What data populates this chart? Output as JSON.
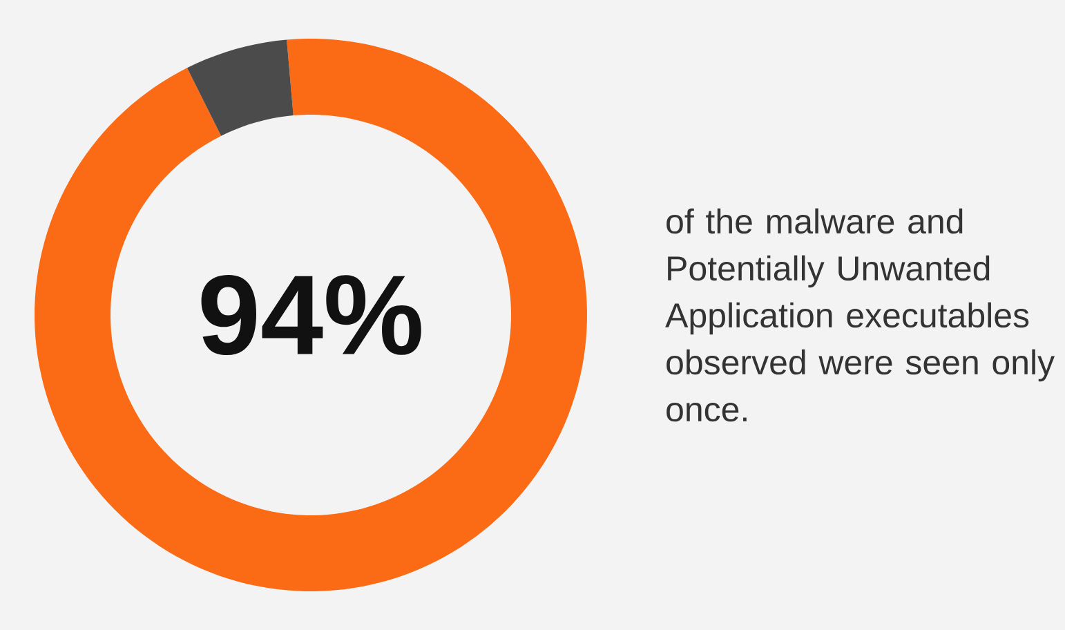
{
  "chart_data": {
    "type": "donut",
    "categories": [
      null,
      null
    ],
    "values": [
      94,
      6
    ],
    "colors": [
      "#fb6a15",
      "#4b4b4b"
    ],
    "value_labels": [
      "94%",
      null
    ],
    "annotations": [
      "of the malware and Potentially Unwanted Application executables observed were seen only once."
    ]
  }
}
